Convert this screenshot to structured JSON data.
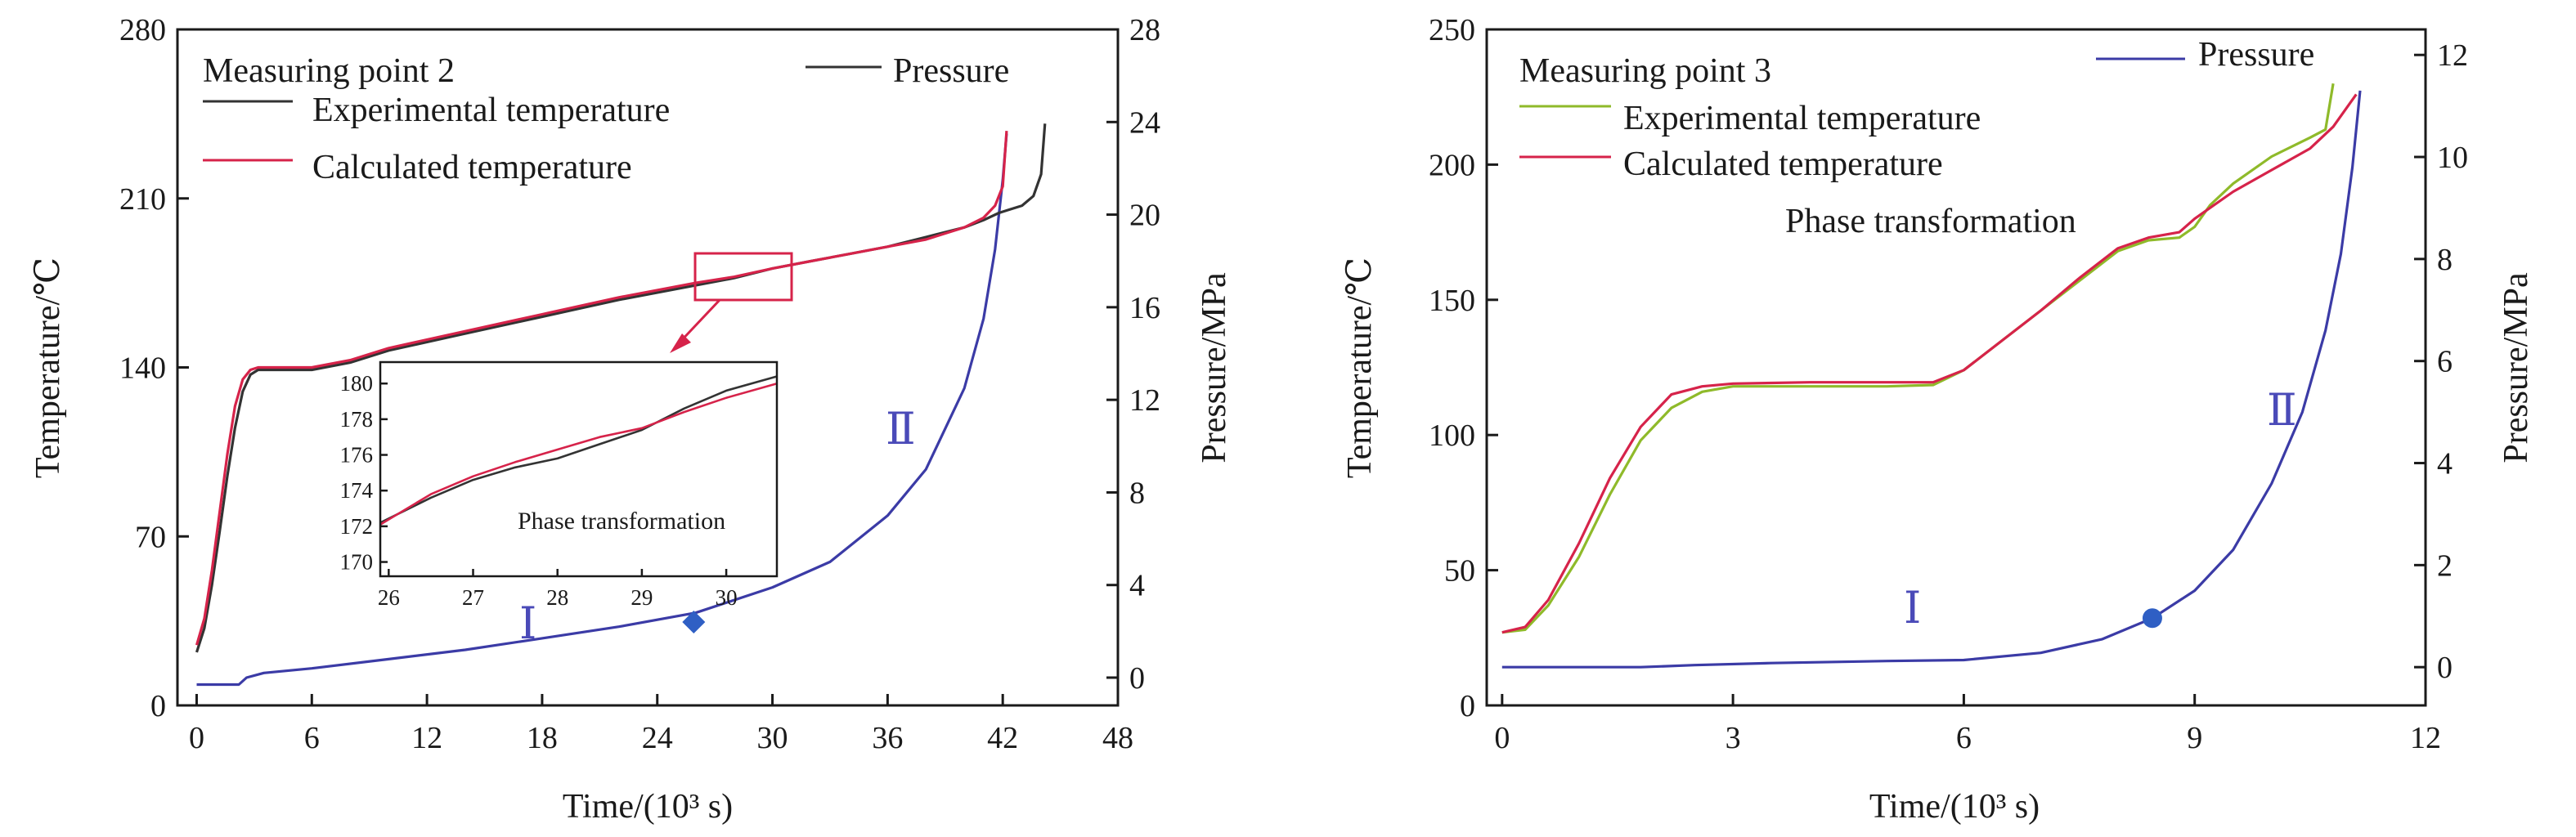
{
  "chart_data": [
    {
      "type": "line",
      "title": "Measuring point 2",
      "xlabel": "Time/(10³ s)",
      "ylabel": "Temperature/℃",
      "y2label": "Pressure/MPa",
      "xlim": [
        -1,
        48
      ],
      "ylim": [
        0,
        280
      ],
      "y2lim": [
        -1.2,
        28
      ],
      "xticks": [
        "0",
        "6",
        "12",
        "18",
        "24",
        "30",
        "36",
        "42",
        "48"
      ],
      "yticks": [
        "0",
        "70",
        "140",
        "210",
        "280"
      ],
      "y2ticks": [
        "0",
        "4",
        "8",
        "12",
        "16",
        "20",
        "24",
        "28"
      ],
      "legend": [
        "Pressure",
        "Experimental temperature",
        "Calculated temperature"
      ],
      "colors": {
        "pressure": "#3b3ba6",
        "experimental": "#333333",
        "calculated": "#d6234a",
        "marker": "#2f5fc4"
      },
      "regime_labels": [
        "Ⅰ",
        "Ⅱ"
      ],
      "marker": {
        "shape": "diamond",
        "x": 25.9,
        "y": 2.4
      },
      "series": [
        {
          "name": "Experimental temperature",
          "axis": "left",
          "x": [
            0,
            0.4,
            0.8,
            1.2,
            1.6,
            2.0,
            2.4,
            2.8,
            3.2,
            3.6,
            4.5,
            6,
            8,
            10,
            14,
            18,
            22,
            26,
            28,
            30,
            32,
            34,
            36,
            38,
            40,
            41,
            41.8,
            42.2,
            43,
            43.6,
            44,
            44.2
          ],
          "y": [
            22,
            32,
            50,
            72,
            95,
            115,
            130,
            137,
            139,
            139,
            139,
            139,
            142,
            147,
            154,
            161,
            168,
            174,
            177,
            181,
            184,
            187,
            190,
            194,
            198,
            201,
            204,
            205,
            207,
            211,
            220,
            241
          ]
        },
        {
          "name": "Calculated temperature",
          "axis": "left",
          "x": [
            0,
            0.4,
            0.8,
            1.2,
            1.6,
            2.0,
            2.4,
            2.8,
            3.2,
            3.6,
            4.5,
            6,
            8,
            10,
            14,
            18,
            22,
            26,
            28,
            30,
            32,
            34,
            36,
            38,
            40,
            41,
            41.6,
            42,
            42.2
          ],
          "y": [
            25,
            36,
            56,
            80,
            104,
            124,
            135,
            139,
            140,
            140,
            140,
            140,
            143,
            148,
            155,
            162,
            169,
            175,
            177.5,
            181,
            184,
            187,
            190,
            193,
            198,
            202,
            207,
            215,
            238
          ]
        },
        {
          "name": "Pressure",
          "axis": "right",
          "x": [
            0,
            2.2,
            2.6,
            3.5,
            6,
            10,
            14,
            18,
            22,
            26,
            30,
            33,
            36,
            38,
            40,
            41,
            41.6,
            42,
            42.2
          ],
          "y": [
            -0.3,
            -0.3,
            0,
            0.2,
            0.4,
            0.8,
            1.2,
            1.7,
            2.2,
            2.8,
            3.9,
            5.0,
            7.0,
            9.0,
            12.5,
            15.5,
            18.5,
            21.5,
            23.5
          ]
        }
      ],
      "inset": {
        "xlim": [
          25.9,
          30.6
        ],
        "ylim": [
          169.2,
          181.2
        ],
        "xticks": [
          "26",
          "27",
          "28",
          "29",
          "30"
        ],
        "yticks": [
          "170",
          "172",
          "174",
          "176",
          "178",
          "180"
        ],
        "annotation": "Phase transformation",
        "series": [
          {
            "name": "Experimental temperature",
            "x": [
              25.9,
              26.5,
              27.0,
              27.5,
              28.0,
              28.5,
              29.0,
              29.5,
              30.0,
              30.6
            ],
            "y": [
              172.2,
              173.6,
              174.6,
              175.3,
              175.8,
              176.6,
              177.4,
              178.6,
              179.6,
              180.4
            ]
          },
          {
            "name": "Calculated temperature",
            "x": [
              25.9,
              26.5,
              27.0,
              27.5,
              28.0,
              28.5,
              29.0,
              29.5,
              30.0,
              30.6
            ],
            "y": [
              172.1,
              173.8,
              174.8,
              175.6,
              176.3,
              177.0,
              177.5,
              178.4,
              179.2,
              180.0
            ]
          }
        ]
      }
    },
    {
      "type": "line",
      "title": "Measuring point 3",
      "xlabel": "Time/(10³ s)",
      "ylabel": "Temperature/℃",
      "y2label": "Pressure/MPa",
      "xlim": [
        -0.2,
        12
      ],
      "ylim": [
        0,
        250
      ],
      "y2lim": [
        -0.75,
        12.5
      ],
      "xticks": [
        "0",
        "3",
        "6",
        "9",
        "12"
      ],
      "yticks": [
        "0",
        "50",
        "100",
        "150",
        "200",
        "250"
      ],
      "y2ticks": [
        "0",
        "2",
        "4",
        "6",
        "8",
        "10",
        "12"
      ],
      "legend": [
        "Pressure",
        "Experimental temperature",
        "Calculated temperature"
      ],
      "annotation": "Phase transformation",
      "colors": {
        "pressure": "#3b3ba6",
        "experimental": "#8fba2a",
        "calculated": "#d6234a",
        "marker": "#2f5fc4"
      },
      "regime_labels": [
        "Ⅰ",
        "Ⅱ"
      ],
      "marker": {
        "shape": "circle",
        "x": 8.45,
        "y": 0.96
      },
      "series": [
        {
          "name": "Experimental temperature",
          "axis": "left",
          "x": [
            0,
            0.3,
            0.6,
            1.0,
            1.4,
            1.8,
            2.2,
            2.6,
            3.0,
            4.0,
            5.0,
            5.6,
            6.0,
            6.5,
            7.0,
            7.5,
            8.0,
            8.4,
            8.8,
            9.0,
            9.2,
            9.5,
            10.0,
            10.5,
            10.7,
            10.8
          ],
          "y": [
            27,
            28,
            37,
            55,
            78,
            98,
            110,
            116,
            118,
            118,
            118,
            118.5,
            124,
            135,
            146,
            157,
            168,
            172,
            173,
            177,
            185,
            193,
            203,
            210,
            213,
            230
          ]
        },
        {
          "name": "Calculated temperature",
          "axis": "left",
          "x": [
            0,
            0.3,
            0.6,
            1.0,
            1.4,
            1.8,
            2.2,
            2.6,
            3.0,
            4.0,
            5.0,
            5.6,
            6.0,
            6.5,
            7.0,
            7.5,
            8.0,
            8.4,
            8.8,
            9.0,
            9.2,
            9.5,
            10.0,
            10.5,
            10.8,
            11.1
          ],
          "y": [
            27,
            29,
            39,
            60,
            84,
            103,
            115,
            118,
            119,
            119.5,
            119.5,
            119.5,
            124,
            135,
            146,
            158,
            169,
            173,
            175,
            180,
            184,
            190,
            198,
            206,
            214,
            226
          ]
        },
        {
          "name": "Pressure",
          "axis": "right",
          "x": [
            0,
            1.8,
            2.5,
            3.5,
            5.0,
            6.0,
            7.0,
            7.8,
            8.45,
            9.0,
            9.5,
            10.0,
            10.4,
            10.7,
            10.9,
            11.05,
            11.15
          ],
          "y": [
            0,
            0,
            0.04,
            0.08,
            0.12,
            0.14,
            0.28,
            0.55,
            0.96,
            1.5,
            2.3,
            3.6,
            5.0,
            6.6,
            8.1,
            9.8,
            11.3
          ]
        }
      ]
    }
  ]
}
